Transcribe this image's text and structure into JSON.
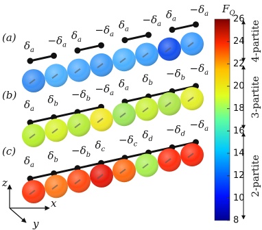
{
  "panels": [
    {
      "label": "(a)",
      "site_labels": [
        {
          "sym": "δ",
          "sub": "a"
        },
        {
          "sym": "−δ",
          "sub": "a"
        },
        {
          "sym": "δ",
          "sub": "a"
        },
        {
          "sym": "−δ",
          "sub": "a"
        },
        {
          "sym": "δ",
          "sub": "a"
        },
        {
          "sym": "−δ",
          "sub": "a"
        },
        {
          "sym": "δ",
          "sub": "a"
        },
        {
          "sym": "−δ",
          "sub": "a"
        }
      ]
    },
    {
      "label": "(b)",
      "site_labels": [
        {
          "sym": "δ",
          "sub": "a"
        },
        {
          "sym": "δ",
          "sub": "b"
        },
        {
          "sym": "−δ",
          "sub": "b"
        },
        {
          "sym": "−δ",
          "sub": "a"
        },
        {
          "sym": "δ",
          "sub": "a"
        },
        {
          "sym": "δ",
          "sub": "b"
        },
        {
          "sym": "−δ",
          "sub": "b"
        },
        {
          "sym": "−δ",
          "sub": "a"
        }
      ]
    },
    {
      "label": "(c)",
      "site_labels": [
        {
          "sym": "δ",
          "sub": "a"
        },
        {
          "sym": "δ",
          "sub": "b"
        },
        {
          "sym": "−δ",
          "sub": "b"
        },
        {
          "sym": "δ",
          "sub": "c"
        },
        {
          "sym": "−δ",
          "sub": "c"
        },
        {
          "sym": "δ",
          "sub": "d"
        },
        {
          "sym": "−δ",
          "sub": "d"
        },
        {
          "sym": "−δ",
          "sub": "a"
        }
      ]
    }
  ],
  "colorbar": {
    "title": {
      "sym": "F",
      "sub": "Q"
    },
    "lim": [
      8,
      26
    ],
    "ticks": [
      8,
      10,
      12,
      14,
      16,
      18,
      20,
      22,
      24,
      26
    ]
  },
  "regions": [
    "4-partite",
    "3-partite",
    "2-partite"
  ],
  "axes": {
    "z": "z",
    "x": "x",
    "y": "y"
  }
}
